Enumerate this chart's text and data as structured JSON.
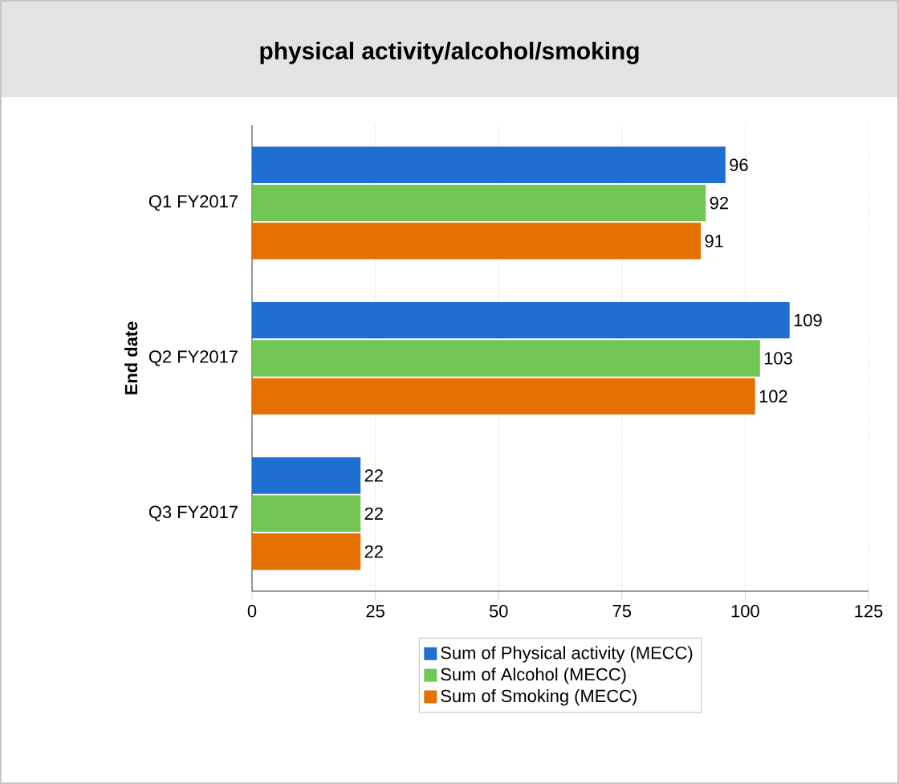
{
  "chart_data": {
    "type": "bar",
    "orientation": "horizontal",
    "title": "physical activity/alcohol/smoking",
    "ylabel": "End date",
    "categories": [
      "Q1 FY2017",
      "Q2 FY2017",
      "Q3 FY2017"
    ],
    "series": [
      {
        "name": "Sum of Physical activity (MECC)",
        "color": "#1f6fd1",
        "values": [
          96,
          109,
          22
        ]
      },
      {
        "name": "Sum of Alcohol (MECC)",
        "color": "#72c653",
        "values": [
          92,
          103,
          22
        ]
      },
      {
        "name": "Sum of Smoking (MECC)",
        "color": "#e37000",
        "values": [
          91,
          102,
          22
        ]
      }
    ],
    "xlim": [
      0,
      125
    ],
    "xticks": [
      0,
      25,
      50,
      75,
      100,
      125
    ],
    "grid": "x",
    "legend": "bottom",
    "data_labels": true
  }
}
